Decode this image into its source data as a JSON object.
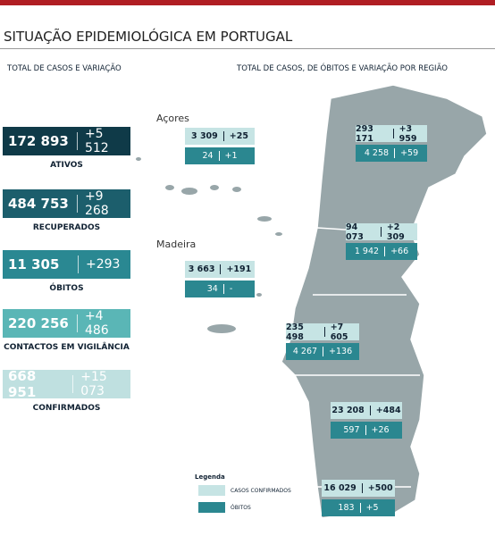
{
  "header": {
    "title": "SITUAÇÃO EPIDEMIOLÓGICA EM PORTUGAL",
    "left_heading": "TOTAL DE CASOS E VARIAÇÃO",
    "right_heading": "TOTAL DE CASOS, DE ÓBITOS E VARIAÇÃO POR REGIÃO"
  },
  "stats": [
    {
      "total": "172 893",
      "change": "+5 512",
      "label": "ATIVOS"
    },
    {
      "total": "484 753",
      "change": "+9 268",
      "label": "RECUPERADOS"
    },
    {
      "total": "11 305",
      "change": "+293",
      "label": "ÓBITOS"
    },
    {
      "total": "220 256",
      "change": "+4 486",
      "label": "CONTACTOS EM VIGILÂNCIA"
    },
    {
      "total": "668 951",
      "change": "+15 073",
      "label": "CONFIRMADOS"
    }
  ],
  "island_names": [
    "Açores",
    "Madeira"
  ],
  "regions": [
    {
      "cases": "3 309",
      "cases_change": "+25",
      "deaths": "24",
      "deaths_change": "+1"
    },
    {
      "cases": "3 663",
      "cases_change": "+191",
      "deaths": "34",
      "deaths_change": "-"
    },
    {
      "cases": "293 171",
      "cases_change": "+3 959",
      "deaths": "4 258",
      "deaths_change": "+59"
    },
    {
      "cases": "94 073",
      "cases_change": "+2 309",
      "deaths": "1 942",
      "deaths_change": "+66"
    },
    {
      "cases": "235 498",
      "cases_change": "+7 605",
      "deaths": "4 267",
      "deaths_change": "+136"
    },
    {
      "cases": "23 208",
      "cases_change": "+484",
      "deaths": "597",
      "deaths_change": "+26"
    },
    {
      "cases": "16 029",
      "cases_change": "+500",
      "deaths": "183",
      "deaths_change": "+5"
    }
  ],
  "legend": {
    "title": "Legenda",
    "items": [
      "CASOS CONFIRMADOS",
      "ÓBITOS"
    ]
  }
}
